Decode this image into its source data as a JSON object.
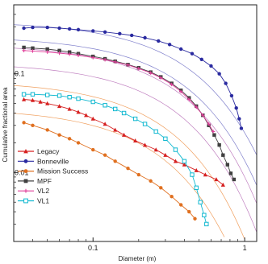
{
  "chart_data": {
    "type": "scatter",
    "title": "",
    "xlabel": "Diameter (m)",
    "ylabel": "Cumulative fractional area",
    "x_scale": "log",
    "y_scale": "log",
    "xlim": [
      0.03,
      1.2
    ],
    "ylim": [
      0.002,
      0.5
    ],
    "x_ticks": [
      {
        "value": 0.1,
        "label": "0.1"
      },
      {
        "value": 1,
        "label": "1"
      }
    ],
    "y_ticks": [
      {
        "value": 0.1,
        "label": "0.1"
      },
      {
        "value": 0.01,
        "label": "0.01"
      }
    ],
    "grid": false,
    "legend_position": "bottom-left",
    "series": [
      {
        "name": "Legacy",
        "color": "#d62020",
        "marker": "triangle",
        "points": [
          [
            0.035,
            0.055
          ],
          [
            0.04,
            0.054
          ],
          [
            0.045,
            0.052
          ],
          [
            0.05,
            0.05
          ],
          [
            0.06,
            0.047
          ],
          [
            0.07,
            0.044
          ],
          [
            0.08,
            0.041
          ],
          [
            0.09,
            0.038
          ],
          [
            0.1,
            0.035
          ],
          [
            0.12,
            0.031
          ],
          [
            0.14,
            0.027
          ],
          [
            0.16,
            0.024
          ],
          [
            0.19,
            0.021
          ],
          [
            0.22,
            0.019
          ],
          [
            0.26,
            0.017
          ],
          [
            0.3,
            0.015
          ],
          [
            0.35,
            0.013
          ],
          [
            0.4,
            0.012
          ],
          [
            0.48,
            0.0105
          ],
          [
            0.55,
            0.0095
          ],
          [
            0.65,
            0.0085
          ],
          [
            0.72,
            0.0075
          ]
        ]
      },
      {
        "name": "Bonneville",
        "color": "#2a2aa0",
        "marker": "circle",
        "points": [
          [
            0.035,
            0.29
          ],
          [
            0.04,
            0.295
          ],
          [
            0.05,
            0.295
          ],
          [
            0.06,
            0.29
          ],
          [
            0.07,
            0.285
          ],
          [
            0.08,
            0.28
          ],
          [
            0.1,
            0.272
          ],
          [
            0.12,
            0.265
          ],
          [
            0.15,
            0.255
          ],
          [
            0.18,
            0.245
          ],
          [
            0.22,
            0.232
          ],
          [
            0.27,
            0.215
          ],
          [
            0.32,
            0.198
          ],
          [
            0.38,
            0.178
          ],
          [
            0.45,
            0.16
          ],
          [
            0.52,
            0.14
          ],
          [
            0.6,
            0.12
          ],
          [
            0.68,
            0.1
          ],
          [
            0.75,
            0.08
          ],
          [
            0.82,
            0.06
          ],
          [
            0.88,
            0.045
          ],
          [
            0.92,
            0.035
          ],
          [
            0.95,
            0.028
          ]
        ]
      },
      {
        "name": "Mission Success",
        "color": "#e07020",
        "marker": "circle",
        "points": [
          [
            0.035,
            0.032
          ],
          [
            0.04,
            0.03
          ],
          [
            0.05,
            0.027
          ],
          [
            0.06,
            0.024
          ],
          [
            0.07,
            0.022
          ],
          [
            0.08,
            0.02
          ],
          [
            0.1,
            0.017
          ],
          [
            0.12,
            0.015
          ],
          [
            0.14,
            0.013
          ],
          [
            0.17,
            0.011
          ],
          [
            0.2,
            0.0095
          ],
          [
            0.24,
            0.0082
          ],
          [
            0.28,
            0.007
          ],
          [
            0.33,
            0.0057
          ],
          [
            0.38,
            0.0047
          ],
          [
            0.43,
            0.004
          ],
          [
            0.47,
            0.0034
          ]
        ]
      },
      {
        "name": "MPF",
        "color": "#404040",
        "marker": "square",
        "points": [
          [
            0.035,
            0.185
          ],
          [
            0.04,
            0.182
          ],
          [
            0.05,
            0.178
          ],
          [
            0.06,
            0.172
          ],
          [
            0.07,
            0.166
          ],
          [
            0.08,
            0.16
          ],
          [
            0.1,
            0.15
          ],
          [
            0.12,
            0.142
          ],
          [
            0.14,
            0.134
          ],
          [
            0.17,
            0.124
          ],
          [
            0.2,
            0.115
          ],
          [
            0.24,
            0.104
          ],
          [
            0.28,
            0.093
          ],
          [
            0.33,
            0.08
          ],
          [
            0.38,
            0.068
          ],
          [
            0.43,
            0.057
          ],
          [
            0.48,
            0.047
          ],
          [
            0.53,
            0.038
          ],
          [
            0.58,
            0.03
          ],
          [
            0.63,
            0.024
          ],
          [
            0.68,
            0.019
          ],
          [
            0.72,
            0.015
          ],
          [
            0.77,
            0.012
          ],
          [
            0.81,
            0.0098
          ],
          [
            0.85,
            0.0085
          ]
        ]
      },
      {
        "name": "VL2",
        "color": "#e0409a",
        "marker": "plus",
        "points": [
          [
            0.035,
            0.172
          ],
          [
            0.04,
            0.17
          ],
          [
            0.05,
            0.166
          ],
          [
            0.06,
            0.162
          ],
          [
            0.07,
            0.158
          ],
          [
            0.08,
            0.154
          ],
          [
            0.1,
            0.146
          ],
          [
            0.12,
            0.139
          ],
          [
            0.14,
            0.132
          ],
          [
            0.17,
            0.123
          ],
          [
            0.2,
            0.113
          ],
          [
            0.24,
            0.102
          ],
          [
            0.28,
            0.091
          ],
          [
            0.33,
            0.078
          ],
          [
            0.38,
            0.066
          ],
          [
            0.43,
            0.055
          ],
          [
            0.48,
            0.046
          ],
          [
            0.53,
            0.038
          ],
          [
            0.58,
            0.031
          ],
          [
            0.62,
            0.026
          ]
        ]
      },
      {
        "name": "VL1",
        "color": "#10b8d0",
        "marker": "square-open",
        "points": [
          [
            0.035,
            0.062
          ],
          [
            0.04,
            0.062
          ],
          [
            0.05,
            0.061
          ],
          [
            0.06,
            0.06
          ],
          [
            0.07,
            0.058
          ],
          [
            0.08,
            0.056
          ],
          [
            0.1,
            0.052
          ],
          [
            0.12,
            0.048
          ],
          [
            0.14,
            0.044
          ],
          [
            0.16,
            0.04
          ],
          [
            0.19,
            0.035
          ],
          [
            0.22,
            0.031
          ],
          [
            0.26,
            0.026
          ],
          [
            0.3,
            0.022
          ],
          [
            0.35,
            0.017
          ],
          [
            0.4,
            0.013
          ],
          [
            0.45,
            0.0095
          ],
          [
            0.48,
            0.007
          ],
          [
            0.51,
            0.005
          ],
          [
            0.54,
            0.0037
          ],
          [
            0.56,
            0.003
          ]
        ]
      }
    ]
  }
}
